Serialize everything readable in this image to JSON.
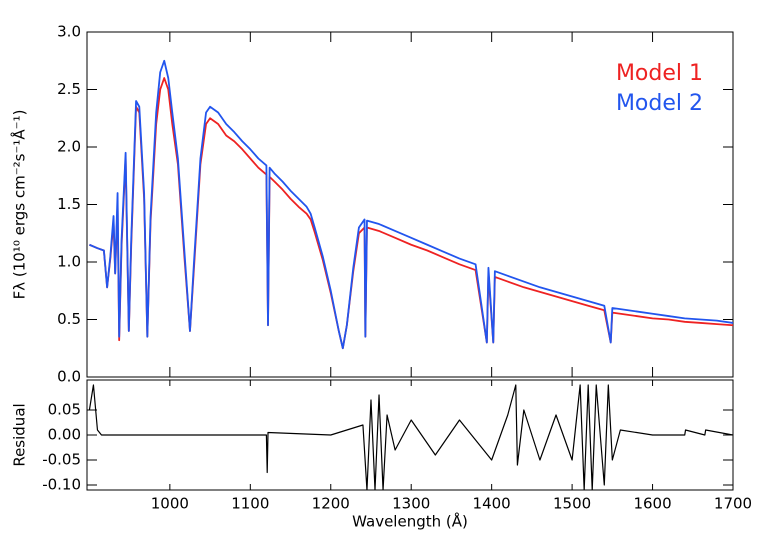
{
  "chart_data": [
    {
      "type": "line",
      "y_label": "Fλ (10¹⁰ ergs cm⁻²s⁻¹Å⁻¹)",
      "legend": "upper right",
      "xlim": [
        897,
        1700
      ],
      "ylim": [
        0,
        3
      ],
      "yticks": [
        {
          "value": 0,
          "label": "0.0"
        },
        0.5,
        {
          "value": 1,
          "label": "1.0"
        },
        1.5,
        {
          "value": 2,
          "label": "2.0"
        },
        2.5,
        {
          "value": 3,
          "label": "3.0"
        }
      ],
      "x": [
        900,
        910,
        918,
        922,
        926,
        930,
        932,
        935,
        937,
        940,
        945,
        949,
        952,
        958,
        962,
        968,
        972,
        976,
        983,
        988,
        993,
        998,
        1003,
        1010,
        1018,
        1025,
        1030,
        1038,
        1045,
        1050,
        1060,
        1070,
        1080,
        1090,
        1100,
        1110,
        1120,
        1122,
        1124,
        1130,
        1140,
        1150,
        1160,
        1170,
        1175,
        1180,
        1190,
        1200,
        1210,
        1215,
        1220,
        1228,
        1235,
        1242,
        1243,
        1245,
        1260,
        1280,
        1300,
        1320,
        1340,
        1360,
        1380,
        1394,
        1396,
        1402,
        1404,
        1420,
        1440,
        1460,
        1480,
        1500,
        1520,
        1540,
        1548,
        1550,
        1560,
        1580,
        1600,
        1620,
        1640,
        1660,
        1680,
        1700
      ],
      "series": [
        {
          "name": "Model 1",
          "color": "#ee2222",
          "values": [
            1.15,
            1.12,
            1.1,
            0.78,
            1.03,
            1.35,
            0.9,
            1.5,
            0.32,
            1.15,
            1.9,
            0.4,
            1.15,
            2.35,
            2.3,
            1.55,
            0.35,
            1.35,
            2.2,
            2.5,
            2.6,
            2.5,
            2.2,
            1.85,
            1.05,
            0.4,
            0.95,
            1.85,
            2.2,
            2.25,
            2.2,
            2.1,
            2.05,
            1.98,
            1.9,
            1.82,
            1.76,
            0.45,
            1.74,
            1.7,
            1.63,
            1.55,
            1.48,
            1.42,
            1.37,
            1.26,
            1.02,
            0.73,
            0.4,
            0.25,
            0.45,
            0.92,
            1.25,
            1.3,
            0.35,
            1.3,
            1.27,
            1.21,
            1.15,
            1.1,
            1.04,
            0.98,
            0.93,
            0.3,
            0.9,
            0.3,
            0.87,
            0.83,
            0.78,
            0.74,
            0.7,
            0.66,
            0.62,
            0.58,
            0.3,
            0.56,
            0.55,
            0.53,
            0.51,
            0.5,
            0.48,
            0.47,
            0.46,
            0.45
          ]
        },
        {
          "name": "Model 2",
          "color": "#2255ee",
          "values": [
            1.15,
            1.12,
            1.1,
            0.78,
            1.05,
            1.4,
            0.9,
            1.6,
            0.35,
            1.2,
            1.95,
            0.4,
            1.2,
            2.4,
            2.35,
            1.6,
            0.35,
            1.4,
            2.3,
            2.65,
            2.75,
            2.6,
            2.3,
            1.9,
            1.1,
            0.4,
            1.0,
            1.9,
            2.3,
            2.35,
            2.3,
            2.2,
            2.13,
            2.05,
            1.98,
            1.9,
            1.84,
            0.45,
            1.82,
            1.77,
            1.7,
            1.62,
            1.55,
            1.48,
            1.42,
            1.3,
            1.05,
            0.75,
            0.4,
            0.25,
            0.45,
            0.95,
            1.3,
            1.37,
            0.35,
            1.36,
            1.33,
            1.27,
            1.21,
            1.15,
            1.09,
            1.03,
            0.98,
            0.3,
            0.95,
            0.3,
            0.92,
            0.88,
            0.83,
            0.78,
            0.74,
            0.7,
            0.66,
            0.62,
            0.3,
            0.6,
            0.59,
            0.57,
            0.55,
            0.53,
            0.51,
            0.5,
            0.49,
            0.47
          ]
        }
      ]
    },
    {
      "type": "line",
      "x_label": "Wavelength (Å)",
      "y_label": "Residual",
      "xlim": [
        897,
        1700
      ],
      "ylim": [
        -0.11,
        0.11
      ],
      "xticks": [
        1000,
        1100,
        1200,
        1300,
        1400,
        1500,
        1600,
        1700
      ],
      "yticks": [
        0.05,
        {
          "value": 0,
          "label": "0.00"
        },
        -0.05,
        {
          "value": -0.1,
          "label": "-0.10"
        }
      ],
      "x": [
        900,
        905,
        910,
        915,
        920,
        1000,
        1100,
        1120,
        1121,
        1122,
        1200,
        1240,
        1245,
        1250,
        1255,
        1260,
        1265,
        1270,
        1280,
        1300,
        1330,
        1360,
        1400,
        1420,
        1430,
        1432,
        1440,
        1460,
        1480,
        1500,
        1510,
        1515,
        1520,
        1525,
        1530,
        1540,
        1545,
        1550,
        1560,
        1600,
        1640,
        1641,
        1665,
        1666,
        1700
      ],
      "series": [
        {
          "name": "Residual",
          "color": "#000000",
          "values": [
            0.05,
            0.1,
            0.01,
            0.0,
            0.0,
            0.0,
            0.0,
            0.0,
            -0.075,
            0.005,
            0.0,
            0.02,
            -0.11,
            0.07,
            -0.11,
            0.08,
            -0.11,
            0.04,
            -0.03,
            0.03,
            -0.04,
            0.03,
            -0.05,
            0.04,
            0.1,
            -0.06,
            0.05,
            -0.05,
            0.04,
            -0.05,
            0.1,
            -0.11,
            0.1,
            -0.11,
            0.1,
            -0.1,
            0.1,
            -0.05,
            0.01,
            0.0,
            0.0,
            0.01,
            0.0,
            0.01,
            0.0
          ]
        }
      ]
    }
  ]
}
